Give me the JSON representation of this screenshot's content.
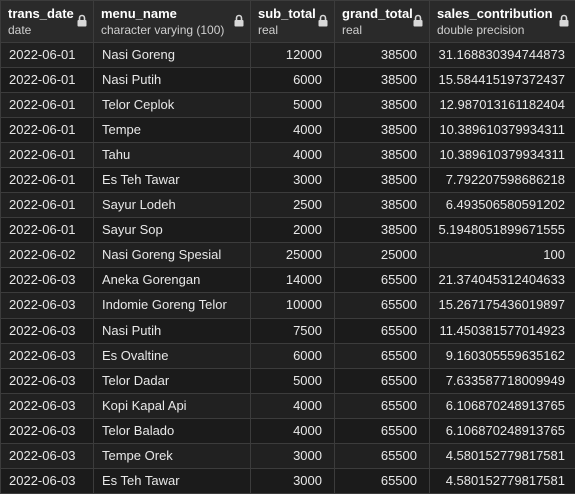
{
  "columns": [
    {
      "name": "trans_date",
      "type": "date"
    },
    {
      "name": "menu_name",
      "type": "character varying (100)"
    },
    {
      "name": "sub_total",
      "type": "real"
    },
    {
      "name": "grand_total",
      "type": "real"
    },
    {
      "name": "sales_contribution",
      "type": "double precision"
    }
  ],
  "lock_icon": "lock-icon",
  "rows": [
    [
      "2022-06-01",
      "Nasi Goreng",
      "12000",
      "38500",
      "31.168830394744873"
    ],
    [
      "2022-06-01",
      "Nasi Putih",
      "6000",
      "38500",
      "15.584415197372437"
    ],
    [
      "2022-06-01",
      "Telor Ceplok",
      "5000",
      "38500",
      "12.987013161182404"
    ],
    [
      "2022-06-01",
      "Tempe",
      "4000",
      "38500",
      "10.389610379934311"
    ],
    [
      "2022-06-01",
      "Tahu",
      "4000",
      "38500",
      "10.389610379934311"
    ],
    [
      "2022-06-01",
      "Es Teh Tawar",
      "3000",
      "38500",
      "7.792207598686218"
    ],
    [
      "2022-06-01",
      "Sayur Lodeh",
      "2500",
      "38500",
      "6.493506580591202"
    ],
    [
      "2022-06-01",
      "Sayur Sop",
      "2000",
      "38500",
      "5.1948051899671555"
    ],
    [
      "2022-06-02",
      "Nasi Goreng Spesial",
      "25000",
      "25000",
      "100"
    ],
    [
      "2022-06-03",
      "Aneka Gorengan",
      "14000",
      "65500",
      "21.374045312404633"
    ],
    [
      "2022-06-03",
      "Indomie Goreng Telor",
      "10000",
      "65500",
      "15.267175436019897"
    ],
    [
      "2022-06-03",
      "Nasi Putih",
      "7500",
      "65500",
      "11.450381577014923"
    ],
    [
      "2022-06-03",
      "Es Ovaltine",
      "6000",
      "65500",
      "9.160305559635162"
    ],
    [
      "2022-06-03",
      "Telor Dadar",
      "5000",
      "65500",
      "7.633587718009949"
    ],
    [
      "2022-06-03",
      "Kopi Kapal Api",
      "4000",
      "65500",
      "6.106870248913765"
    ],
    [
      "2022-06-03",
      "Telor Balado",
      "4000",
      "65500",
      "6.106870248913765"
    ],
    [
      "2022-06-03",
      "Tempe Orek",
      "3000",
      "65500",
      "4.580152779817581"
    ],
    [
      "2022-06-03",
      "Es Teh Tawar",
      "3000",
      "65500",
      "4.580152779817581"
    ]
  ]
}
